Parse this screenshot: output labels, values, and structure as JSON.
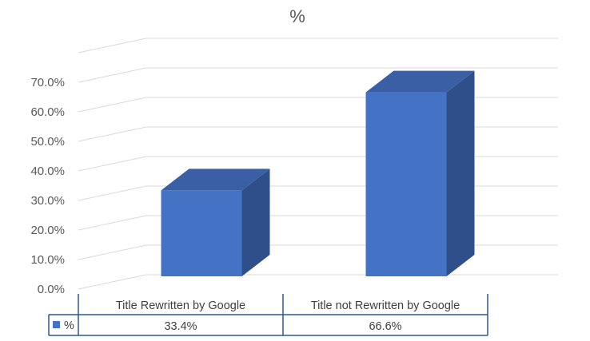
{
  "chart_data": {
    "type": "bar",
    "title": "%",
    "categories": [
      "Title Rewritten by Google",
      "Title not Rewritten by Google"
    ],
    "series": [
      {
        "name": "%",
        "values": [
          33.4,
          66.6
        ],
        "color": "#4472C4"
      }
    ],
    "value_labels": [
      "33.4%",
      "66.6%"
    ],
    "y_ticks": [
      "0.0%",
      "10.0%",
      "20.0%",
      "30.0%",
      "40.0%",
      "50.0%",
      "60.0%",
      "70.0%"
    ],
    "ylim": [
      0,
      80
    ],
    "grid": true,
    "style": "3d-column",
    "legend": "data-table"
  }
}
